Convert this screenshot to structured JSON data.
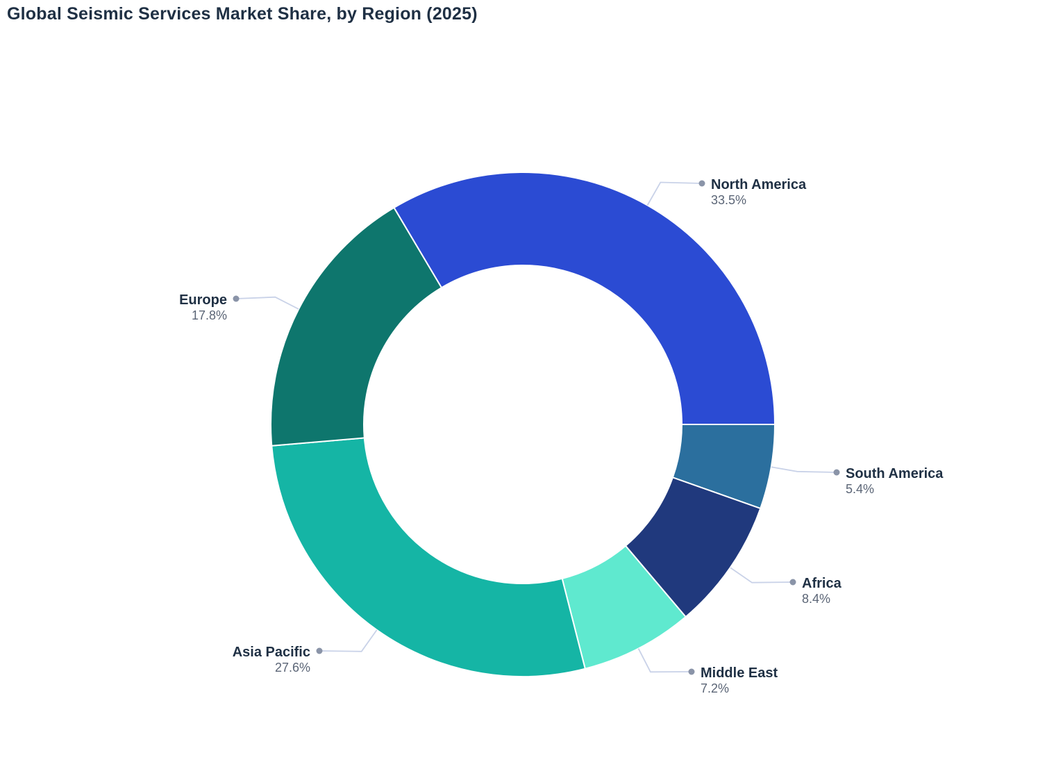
{
  "chart_data": {
    "type": "pie",
    "subtype": "donut",
    "title": "Global Seismic Services Market Share, by Region (2025)",
    "unit": "%",
    "hole_ratio": 0.63,
    "direction": "clockwise",
    "start_angle_clockwise_from_top_deg": 90,
    "legend_position": "none",
    "labels_outside_with_leader_lines": true,
    "slices": [
      {
        "label": "South America",
        "value": 5.4,
        "display_value": "5.4%",
        "color": "#2b6f9e"
      },
      {
        "label": "Africa",
        "value": 8.4,
        "display_value": "8.4%",
        "color": "#20397d"
      },
      {
        "label": "Middle East",
        "value": 7.2,
        "display_value": "7.2%",
        "color": "#5fe9cf"
      },
      {
        "label": "Asia Pacific",
        "value": 27.6,
        "display_value": "27.6%",
        "color": "#15b5a5"
      },
      {
        "label": "Europe",
        "value": 17.8,
        "display_value": "17.8%",
        "color": "#0e766d"
      },
      {
        "label": "North America",
        "value": 33.5,
        "display_value": "33.5%",
        "color": "#2b4bd3"
      }
    ],
    "colors": {
      "title_text": "#1f3044",
      "label_text": "#1f3044",
      "value_text": "#5b6576",
      "leader_line": "#c9d2e8",
      "leader_dot": "#8a94a8",
      "slice_border": "#ffffff",
      "background": "#ffffff"
    }
  }
}
